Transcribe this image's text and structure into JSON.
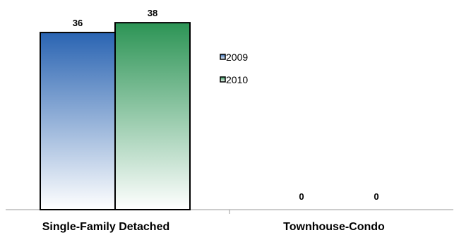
{
  "chart_data": {
    "type": "bar",
    "categories": [
      "Single-Family Detached",
      "Townhouse-Condo"
    ],
    "series": [
      {
        "name": "2009",
        "values": [
          36,
          0
        ],
        "color": "#2e6cb5"
      },
      {
        "name": "2010",
        "values": [
          38,
          0
        ],
        "color": "#2e9458"
      }
    ],
    "data_labels": [
      [
        "36",
        "0"
      ],
      [
        "38",
        "0"
      ]
    ],
    "ylim": [
      0,
      40
    ],
    "grid": false,
    "legend_position": "right"
  }
}
